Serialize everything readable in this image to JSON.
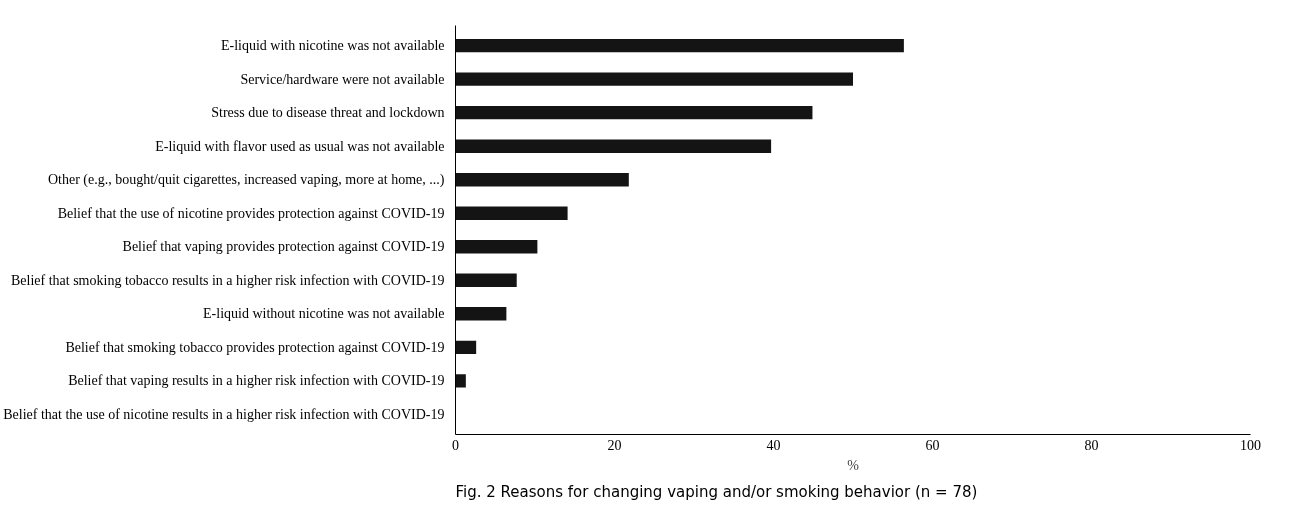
{
  "chart_data": {
    "type": "bar",
    "orientation": "horizontal",
    "categories": [
      "E-liquid with nicotine was not available",
      "Service/hardware were not available",
      "Stress due to disease threat and lockdown",
      "E-liquid with flavor used as usual was not available",
      "Other (e.g., bought/quit cigarettes, increased vaping, more at home, ...)",
      "Belief that the use of nicotine provides protection against COVID-19",
      "Belief that vaping provides protection against COVID-19",
      "Belief that smoking tobacco results in a higher risk infection with COVID-19",
      "E-liquid without nicotine was not available",
      "Belief that smoking tobacco provides protection against COVID-19",
      "Belief that vaping results in a higher risk infection with COVID-19",
      "Belief that the use of nicotine results in a higher risk infection with COVID-19"
    ],
    "values": [
      56.4,
      50.0,
      44.9,
      39.7,
      21.8,
      14.1,
      10.3,
      7.7,
      6.4,
      2.6,
      1.3,
      0
    ],
    "color": "#141414",
    "xlim": [
      0,
      100
    ],
    "xticks": [
      0,
      20,
      40,
      60,
      80,
      100
    ],
    "xlabel": "%",
    "grid": false,
    "annotations": [
      "Fig. 2 Reasons for changing vaping and/or smoking behavior (n = 78)"
    ]
  }
}
